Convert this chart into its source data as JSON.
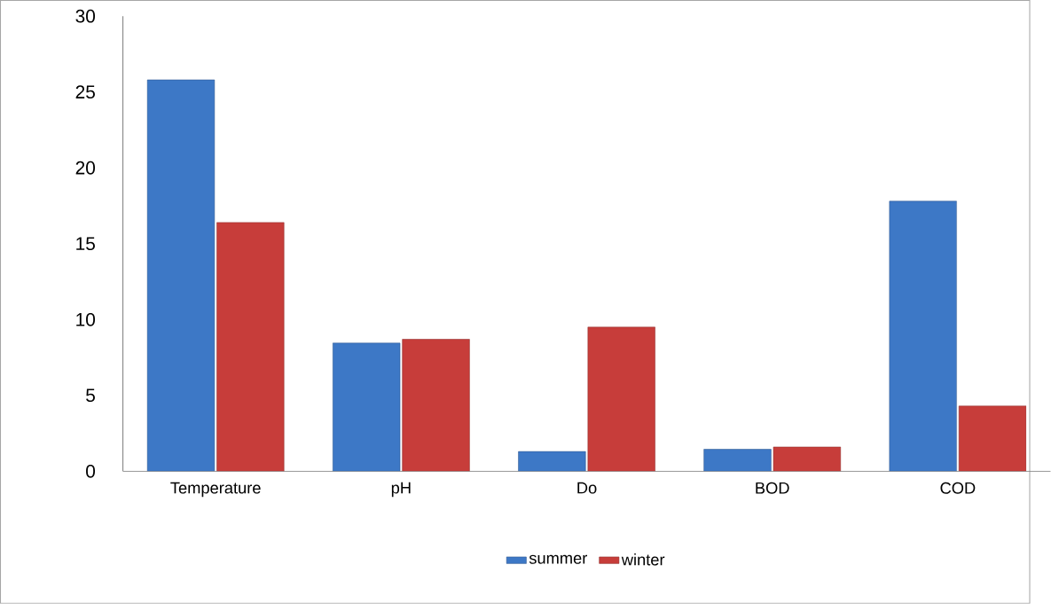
{
  "chart_data": {
    "type": "bar",
    "categories": [
      "Temperature",
      "pH",
      "Do",
      "BOD",
      "COD"
    ],
    "series": [
      {
        "name": "summer",
        "color": "#3d78c6",
        "values": [
          25.8,
          8.45,
          1.3,
          1.45,
          17.8
        ]
      },
      {
        "name": "winter",
        "color": "#c73d3a",
        "values": [
          16.4,
          8.7,
          9.5,
          1.6,
          4.3
        ]
      }
    ],
    "ylim": [
      0,
      30
    ],
    "yticks": [
      0,
      5,
      10,
      15,
      20,
      25,
      30
    ],
    "grid": false,
    "legend": "bottom"
  }
}
